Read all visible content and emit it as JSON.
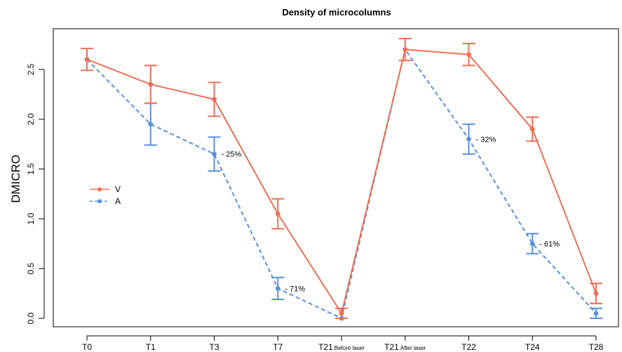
{
  "chart_data": {
    "type": "line",
    "title": "Density of microcolumns",
    "xlabel": "",
    "ylabel": "DMICRO",
    "ylim": [
      -0.05,
      2.85
    ],
    "yticks": [
      "0.0",
      "0.5",
      "1.0",
      "1.5",
      "2.0",
      "2.5"
    ],
    "categories": [
      {
        "main": "T0",
        "sub": ""
      },
      {
        "main": "T1",
        "sub": ""
      },
      {
        "main": "T3",
        "sub": ""
      },
      {
        "main": "T7",
        "sub": ""
      },
      {
        "main": "T21",
        "sub": "Before laser"
      },
      {
        "main": "T21",
        "sub": "After laser"
      },
      {
        "main": "T22",
        "sub": ""
      },
      {
        "main": "T24",
        "sub": ""
      },
      {
        "main": "T28",
        "sub": ""
      }
    ],
    "series": [
      {
        "name": "V",
        "color": "#ee6f55",
        "dash": false,
        "values": [
          2.6,
          2.35,
          2.2,
          1.05,
          0.05,
          2.7,
          2.65,
          1.9,
          0.25
        ],
        "errors": [
          0.11,
          0.19,
          0.17,
          0.15,
          0.05,
          0.11,
          0.11,
          0.12,
          0.1
        ]
      },
      {
        "name": "A",
        "color": "#5b8fe0",
        "dash": true,
        "values": [
          2.6,
          1.95,
          1.65,
          0.3,
          0.0,
          2.7,
          1.8,
          0.75,
          0.05
        ],
        "errors": [
          0.0,
          0.21,
          0.17,
          0.11,
          0.0,
          0.0,
          0.15,
          0.1,
          0.05
        ]
      }
    ],
    "annotations": [
      {
        "text": "- 25%",
        "series": "A",
        "index": 2
      },
      {
        "text": "- 71%",
        "series": "A",
        "index": 3
      },
      {
        "text": "- 32%",
        "series": "A",
        "index": 6
      },
      {
        "text": "- 61%",
        "series": "A",
        "index": 7
      }
    ],
    "legend": {
      "placement": "left-middle",
      "entries": [
        "V",
        "A"
      ]
    },
    "grid": false
  }
}
